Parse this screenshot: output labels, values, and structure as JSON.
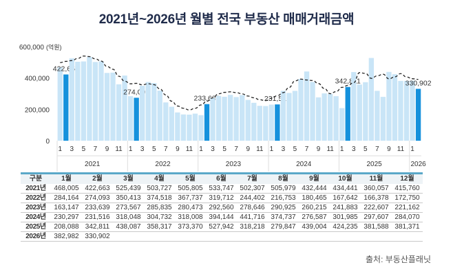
{
  "title": "2021년~2026년 월별 전국 부동산 매매거래금액",
  "source": "출처: 부동산플래닛",
  "chart_data": {
    "type": "bar",
    "ylabel_unit": "(억원)",
    "ylim": [
      0,
      600000
    ],
    "yticks": [
      "0",
      "200,000",
      "400,000",
      "600,000 "
    ],
    "ytick_values": [
      0,
      200000,
      400000,
      600000
    ],
    "years": [
      "2021",
      "2022",
      "2023",
      "2024",
      "2025",
      "2026"
    ],
    "month_ticks": [
      "1",
      "3",
      "5",
      "7",
      "9",
      "11"
    ],
    "highlight_month": 2,
    "trend_line": "dashed",
    "colors": {
      "bar": "#c9e5f7",
      "highlight": "#1591dc",
      "line": "#222222"
    },
    "annotations": [
      "422,663",
      "274,093",
      "233,639",
      "231,516",
      "342,811",
      "330,902"
    ],
    "values": [
      [
        468005,
        422663,
        525439,
        503727,
        505805,
        533747,
        502307,
        505979,
        432444,
        434441,
        360057,
        415760
      ],
      [
        284164,
        274093,
        350413,
        374518,
        367737,
        319712,
        244402,
        216753,
        180465,
        167642,
        166378,
        172750
      ],
      [
        163147,
        233639,
        273567,
        285835,
        280473,
        292560,
        278646,
        290925,
        260215,
        241883,
        222607,
        221162
      ],
      [
        230297,
        231516,
        318048,
        304732,
        318008,
        394144,
        441716,
        374737,
        276587,
        301985,
        297607,
        284070
      ],
      [
        208088,
        342811,
        438087,
        358317,
        373370,
        527942,
        318218,
        279847,
        439004,
        424235,
        381588,
        381371
      ],
      [
        382982,
        330902
      ]
    ]
  },
  "table": {
    "headers": [
      "구분",
      "1월",
      "2월",
      "3월",
      "4월",
      "5월",
      "6월",
      "7월",
      "8월",
      "9월",
      "10월",
      "11월",
      "12월"
    ],
    "rows": [
      [
        "2021년",
        "468,005",
        "422,663",
        "525,439",
        "503,727",
        "505,805",
        "533,747",
        "502,307",
        "505,979",
        "432,444",
        "434,441",
        "360,057",
        "415,760"
      ],
      [
        "2022년",
        "284,164",
        "274,093",
        "350,413",
        "374,518",
        "367,737",
        "319,712",
        "244,402",
        "216,753",
        "180,465",
        "167,642",
        "166,378",
        "172,750"
      ],
      [
        "2023년",
        "163,147",
        "233,639",
        "273,567",
        "285,835",
        "280,473",
        "292,560",
        "278,646",
        "290,925",
        "260,215",
        "241,883",
        "222,607",
        "221,162"
      ],
      [
        "2024년",
        "230,297",
        "231,516",
        "318,048",
        "304,732",
        "318,008",
        "394,144",
        "441,716",
        "374,737",
        "276,587",
        "301,985",
        "297,607",
        "284,070"
      ],
      [
        "2025년",
        "208,088",
        "342,811",
        "438,087",
        "358,317",
        "373,370",
        "527,942",
        "318,218",
        "279,847",
        "439,004",
        "424,235",
        "381,588",
        "381,371"
      ],
      [
        "2026년",
        "382,982",
        "330,902",
        "",
        "",
        "",
        "",
        "",
        "",
        "",
        "",
        "",
        ""
      ]
    ]
  }
}
